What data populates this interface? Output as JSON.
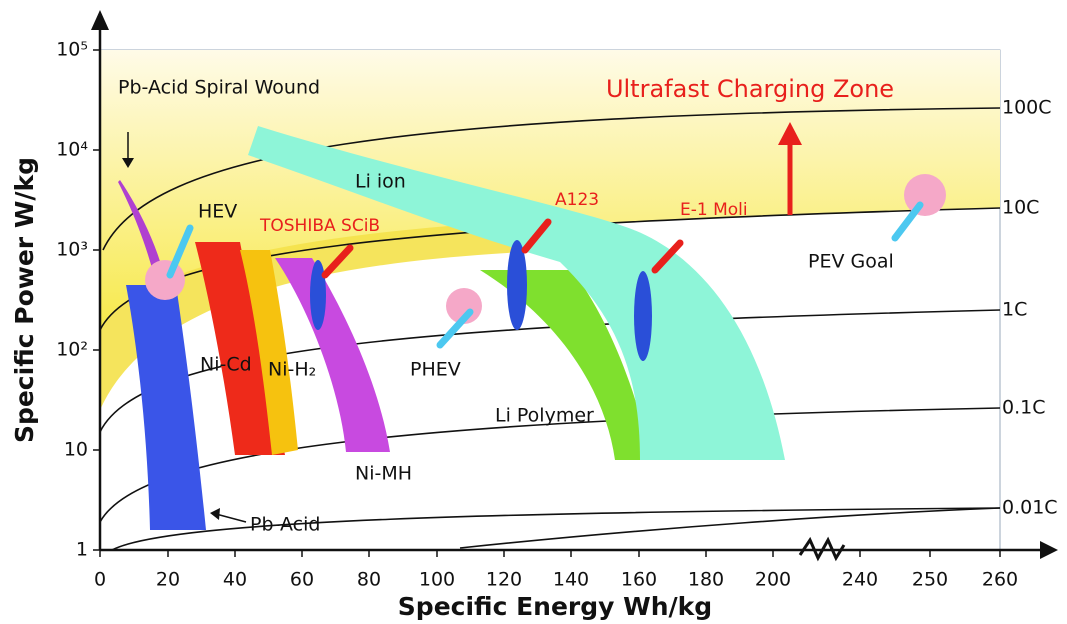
{
  "title": "Ultrafast Charging Zone",
  "x_axis": {
    "title": "Specific Energy Wh/kg",
    "ticks": [
      "0",
      "20",
      "40",
      "60",
      "80",
      "100",
      "120",
      "140",
      "160",
      "180",
      "200",
      "240",
      "250",
      "260"
    ]
  },
  "y_axis": {
    "title": "Specific Power W/kg",
    "ticks": [
      "1",
      "10",
      "10²",
      "10³",
      "10⁴",
      "10⁵"
    ]
  },
  "c_rates": [
    "100C",
    "10C",
    "1C",
    "0.1C",
    "0.01C"
  ],
  "labels": [
    "Pb-Acid Spiral Wound",
    "HEV",
    "TOSHIBA SCiB",
    "Li ion",
    "A123",
    "E-1 Moli",
    "PEV Goal",
    "PHEV",
    "Li Polymer",
    "Ni-Cd",
    "Ni-H₂",
    "Ni-MH",
    "Pb-Acid"
  ]
}
